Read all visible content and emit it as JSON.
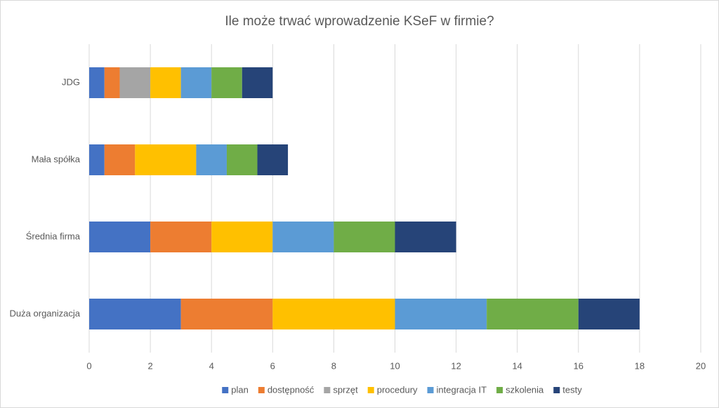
{
  "chart_data": {
    "type": "stacked-bar-horizontal",
    "title": "Ile może trwać wprowadzenie KSeF w firmie?",
    "categories": [
      "JDG",
      "Mała spółka",
      "Średnia firma",
      "Duża organizacja"
    ],
    "series": [
      {
        "name": "plan",
        "color": "#4472c4",
        "values": [
          0.5,
          0.5,
          2,
          3
        ]
      },
      {
        "name": "dostępność",
        "color": "#ed7d31",
        "values": [
          0.5,
          1,
          2,
          3
        ]
      },
      {
        "name": "sprzęt",
        "color": "#a5a5a5",
        "values": [
          1,
          0,
          0,
          0
        ]
      },
      {
        "name": "procedury",
        "color": "#ffc000",
        "values": [
          1,
          2,
          2,
          4
        ]
      },
      {
        "name": "integracja IT",
        "color": "#5b9bd5",
        "values": [
          1,
          1,
          2,
          3
        ]
      },
      {
        "name": "szkolenia",
        "color": "#70ad47",
        "values": [
          1,
          1,
          2,
          3
        ]
      },
      {
        "name": "testy",
        "color": "#264478",
        "values": [
          1,
          1,
          2,
          2
        ]
      }
    ],
    "xlim": [
      0,
      20
    ],
    "xticks": [
      0,
      2,
      4,
      6,
      8,
      10,
      12,
      14,
      16,
      18,
      20
    ],
    "grid": true,
    "legend": "bottom"
  }
}
